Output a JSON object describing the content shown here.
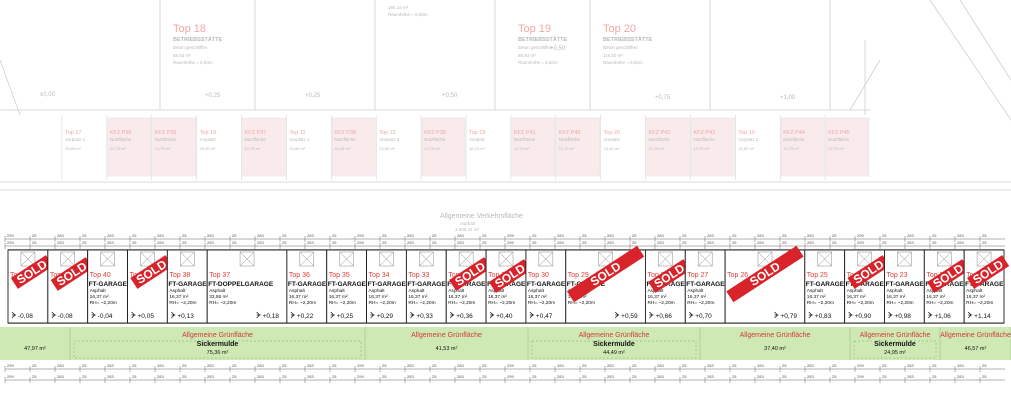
{
  "upper_rooms": [
    {
      "top": "Top 18",
      "label": "BETRIEBSSTÄTTE",
      "line1": "Beton geschliffen",
      "line2": "88,93 m²",
      "line3": "Raumhöhe = 6,50m"
    },
    {
      "top": "",
      "label": "",
      "line1": "",
      "line2": "194,16 m²",
      "line3": "Raumhöhe = 6,50m"
    },
    {
      "top": "Top 19",
      "label": "BETRIEBSSTÄTTE",
      "line1": "Beton geschliffen",
      "line2": "88,93 m²",
      "line3": "Raumhöhe = 6,50m"
    },
    {
      "top": "Top 20",
      "label": "BETRIEBSSTÄTTE",
      "line1": "Beton geschliffen",
      "line2": "116,50 m²",
      "line3": "Raumhöhe = 6,50m"
    }
  ],
  "upper_levels": [
    "±0,00",
    "+0,25",
    "+0,25",
    "+0,50",
    "+0,50",
    "+0,75",
    "+1,00"
  ],
  "upper_stalls": [
    {
      "name": "Top 17",
      "type": "Vorplatz 2",
      "area": "25,80 m²",
      "pink": false
    },
    {
      "name": "KFZ P36",
      "type": "Nutzfläche",
      "area": "12,75 m²",
      "pink": true
    },
    {
      "name": "KFZ P35",
      "type": "Nutzfläche",
      "area": "12,75 m²",
      "pink": true
    },
    {
      "name": "Top 18",
      "type": "Vorplatz",
      "area": "25,80 m²",
      "pink": false
    },
    {
      "name": "KFZ P37",
      "type": "Nutzfläche",
      "area": "12,75 m²",
      "pink": true
    },
    {
      "name": "Top 11",
      "type": "Vorplatz 2",
      "area": "25,80 m²",
      "pink": false
    },
    {
      "name": "KFZ P38",
      "type": "Nutzfläche",
      "area": "14,28 m²",
      "pink": true
    },
    {
      "name": "Top 12",
      "type": "Vorplatz 3",
      "area": "25,80 m²",
      "pink": false
    },
    {
      "name": "KFZ P39",
      "type": "Nutzfläche",
      "area": "12,75 m²",
      "pink": true
    },
    {
      "name": "Top 19",
      "type": "Vorplatz",
      "area": "36,25 m²",
      "pink": false
    },
    {
      "name": "KFZ P41",
      "type": "Nutzfläche",
      "area": "12,75 m²",
      "pink": true
    },
    {
      "name": "KFZ P40",
      "type": "Nutzfläche",
      "area": "12,75 m²",
      "pink": true
    },
    {
      "name": "Top 20",
      "type": "Vorplatz",
      "area": "25,80 m²",
      "pink": false
    },
    {
      "name": "KFZ P42",
      "type": "Nutzfläche",
      "area": "12,75 m²",
      "pink": true
    },
    {
      "name": "KFZ P43",
      "type": "Nutzfläche",
      "area": "12,75 m²",
      "pink": true
    },
    {
      "name": "Top 10",
      "type": "Vorplatz 2",
      "area": "25,80 m²",
      "pink": false
    },
    {
      "name": "KFZ P44",
      "type": "Nutzfläche",
      "area": "12,75 m²",
      "pink": true
    },
    {
      "name": "KFZ P45",
      "type": "Nutzfläche",
      "area": "12,75 m²",
      "pink": true
    }
  ],
  "traffic_area": {
    "label": "Allgemeine Verkehrsfläche",
    "sub": "Asphalt",
    "area": "3.508,42 m²"
  },
  "garages": [
    {
      "top": "Top 42",
      "title": "",
      "area": "",
      "rh": "",
      "level": "-0,08",
      "sold": true,
      "wide": false
    },
    {
      "top": "Top 41",
      "title": "",
      "area": "",
      "rh": "",
      "level": "-0,08",
      "sold": true,
      "wide": false
    },
    {
      "top": "Top 40",
      "title": "FT-GARAGE",
      "area": "16,37 m²",
      "rh": "RH= ~2,20m",
      "level": "-0,04",
      "sold": false,
      "wide": false
    },
    {
      "top": "Top 39",
      "title": "",
      "area": "",
      "rh": "",
      "level": "+0,05",
      "sold": true,
      "wide": false
    },
    {
      "top": "Top 38",
      "title": "FT-GARAGE",
      "area": "16,37 m²",
      "rh": "RH= ~2,20m",
      "level": "+0,13",
      "sold": false,
      "wide": false
    },
    {
      "top": "Top 37",
      "title": "FT-DOPPELGARAGE",
      "area": "33,55 m²",
      "rh": "RH= ~2,20m",
      "level": "+0,18",
      "sold": false,
      "wide": true
    },
    {
      "top": "Top 36",
      "title": "FT-GARAGE",
      "area": "16,37 m²",
      "rh": "RH= ~2,20m",
      "level": "+0,22",
      "sold": false,
      "wide": false
    },
    {
      "top": "Top 35",
      "title": "FT-GARAGE",
      "area": "16,37 m²",
      "rh": "RH= ~2,20m",
      "level": "+0,25",
      "sold": false,
      "wide": false
    },
    {
      "top": "Top 34",
      "title": "FT-GARAGE",
      "area": "16,37 m²",
      "rh": "RH= ~2,20m",
      "level": "+0,29",
      "sold": false,
      "wide": false
    },
    {
      "top": "Top 33",
      "title": "FT-GARAGE",
      "area": "16,37 m²",
      "rh": "RH= ~2,20m",
      "level": "+0,33",
      "sold": false,
      "wide": false
    },
    {
      "top": "Top 32",
      "title": "FT-GARAGE",
      "area": "16,37 m²",
      "rh": "RH= ~2,20m",
      "level": "+0,36",
      "sold": true,
      "wide": false
    },
    {
      "top": "Top 31",
      "title": "FT-GARAGE",
      "area": "16,37 m²",
      "rh": "RH= ~2,20m",
      "level": "+0,40",
      "sold": true,
      "wide": false
    },
    {
      "top": "Top 30",
      "title": "FT-GARAGE",
      "area": "16,37 m²",
      "rh": "RH= ~2,20m",
      "level": "+0,47",
      "sold": false,
      "wide": false
    },
    {
      "top": "Top 29",
      "title": "FT-GARAGE",
      "area": "16,37 m²",
      "rh": "RH= ~2,20m",
      "level": "+0,59",
      "sold": true,
      "wide": true
    },
    {
      "top": "Top 28",
      "title": "FT-GARAGE",
      "area": "16,37 m²",
      "rh": "RH= ~2,20m",
      "level": "+0,66",
      "sold": true,
      "wide": false
    },
    {
      "top": "Top 27",
      "title": "FT-GARAGE",
      "area": "16,37 m²",
      "rh": "RH= ~2,20m",
      "level": "+0,70",
      "sold": false,
      "wide": false
    },
    {
      "top": "Top 26",
      "title": "",
      "area": "",
      "rh": "",
      "level": "+0,79",
      "sold": true,
      "wide": true
    },
    {
      "top": "Top 25",
      "title": "FT-GARAGE",
      "area": "16,37 m²",
      "rh": "RH= ~2,20m",
      "level": "+0,83",
      "sold": false,
      "wide": false
    },
    {
      "top": "Top 24",
      "title": "FT-GARAGE",
      "area": "16,37 m²",
      "rh": "RH= ~2,20m",
      "level": "+0,90",
      "sold": true,
      "wide": false
    },
    {
      "top": "Top 23",
      "title": "FT-GARAGE",
      "area": "16,37 m²",
      "rh": "RH= ~2,20m",
      "level": "+0,98",
      "sold": false,
      "wide": false
    },
    {
      "top": "Top 22",
      "title": "FT-GARAGE",
      "area": "16,37 m²",
      "rh": "RH= ~2,20m",
      "level": "+1,06",
      "sold": true,
      "wide": false
    },
    {
      "top": "Top 21",
      "title": "FT-GARAGE",
      "area": "16,37 m²",
      "rh": "RH= ~2,20m",
      "level": "+1,14",
      "sold": true,
      "wide": false
    }
  ],
  "sold_label": "SOLD",
  "green_areas": [
    {
      "label": "",
      "sub": "",
      "area": "47,97 m²"
    },
    {
      "label": "Allgemeine Grünfläche",
      "sub": "Sickermulde",
      "area": "75,36 m²"
    },
    {
      "label": "Allgemeine Grünfläche",
      "sub": "",
      "area": "41,53 m²"
    },
    {
      "label": "Allgemeine Grünfläche",
      "sub": "Sickermulde",
      "area": "44,49 m²"
    },
    {
      "label": "Allgemeine Grünfläche",
      "sub": "",
      "area": "37,40 m²"
    },
    {
      "label": "Allgemeine Grünfläche",
      "sub": "Sickermulde",
      "area": "24,95 m²"
    },
    {
      "label": "Allgemeine Grünfläche",
      "sub": "",
      "area": "46,57 m²"
    }
  ],
  "dimension_values": [
    "299",
    "25",
    "283",
    "25",
    "283",
    "25",
    "283",
    "25",
    "283",
    "25",
    "283",
    "25",
    "283",
    "25",
    "299",
    "25",
    "283",
    "25",
    "283",
    "25"
  ],
  "colors": {
    "sold": "#d8232a",
    "green": "#cfe9b5",
    "garage_line": "#1a1a1a",
    "top_label": "#e0413c"
  }
}
